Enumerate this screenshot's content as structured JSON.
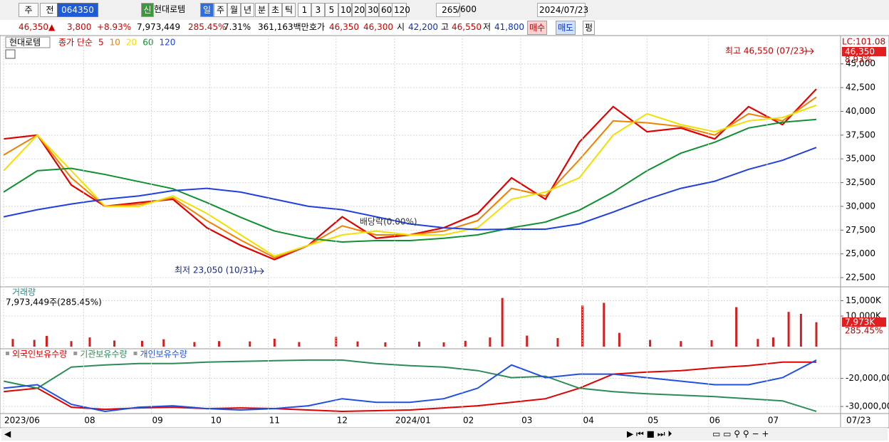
{
  "toolbar": {
    "items": [
      "주",
      "전",
      "064350",
      "신",
      "현대로템",
      "일",
      "주",
      "월",
      "년",
      "분",
      "초",
      "틱",
      "1",
      "3",
      "5",
      "10",
      "20",
      "30",
      "60",
      "120",
      "265",
      "/600",
      "2024/07/23"
    ]
  },
  "quote": {
    "items": [
      "46,350",
      "▲",
      "3,800",
      "+8.93%",
      "7,973,449",
      "285.45%",
      "7.31%",
      "361,163백만",
      "호가",
      "46,350",
      "46,300",
      "시",
      "42,200",
      "고",
      "46,550",
      "저",
      "41,800",
      "매수",
      "매도",
      "펑"
    ]
  },
  "chart_data": [
    {
      "type": "line",
      "title": "현대로템",
      "legend_title": "종가 단순",
      "x": [
        0,
        11,
        22,
        33,
        44,
        55,
        66,
        77,
        88,
        99,
        110,
        121,
        132,
        143,
        154,
        165,
        176,
        187,
        198,
        209,
        220,
        231,
        242,
        253,
        264
      ],
      "xlim": [
        0,
        264
      ],
      "ylim": [
        21530,
        47600
      ],
      "yticks": [
        {
          "value": 22500,
          "label": "22,500"
        },
        {
          "value": 25000,
          "label": "25,000"
        },
        {
          "value": 27500,
          "label": "27,500"
        },
        {
          "value": 30000,
          "label": "30,000"
        },
        {
          "value": 32500,
          "label": "32,500"
        },
        {
          "value": 35000,
          "label": "35,000"
        },
        {
          "value": 37500,
          "label": "37,500"
        },
        {
          "value": 40000,
          "label": "40,000"
        },
        {
          "value": 42500,
          "label": "42,500"
        },
        {
          "value": 45000,
          "label": "45,000"
        }
      ],
      "grid": true,
      "series": [
        {
          "name": "5",
          "color": "#e00000",
          "values": [
            37100,
            37500,
            32250,
            30000,
            30400,
            30750,
            27750,
            25900,
            24400,
            25900,
            28900,
            26650,
            27000,
            27750,
            29250,
            33000,
            30750,
            36750,
            40500,
            37850,
            38250,
            37100,
            40500,
            38600,
            42350
          ]
        },
        {
          "name": "10",
          "color": "#f08000",
          "values": [
            35400,
            37500,
            33000,
            30000,
            30200,
            30900,
            28500,
            26450,
            24600,
            25900,
            27950,
            27000,
            27000,
            27400,
            28500,
            31900,
            31100,
            34900,
            39000,
            38800,
            38400,
            37500,
            39750,
            39000,
            41500
          ]
        },
        {
          "name": "20",
          "color": "#f0e000",
          "values": [
            33750,
            37500,
            33750,
            30000,
            30000,
            31100,
            29250,
            27000,
            24750,
            25900,
            27000,
            27400,
            27000,
            27000,
            27750,
            30750,
            31500,
            33000,
            37500,
            39750,
            38600,
            37850,
            39000,
            39350,
            40650
          ]
        },
        {
          "name": "60",
          "color": "#109030",
          "values": [
            31500,
            33750,
            34000,
            33350,
            32600,
            31850,
            30400,
            28850,
            27400,
            26650,
            26250,
            26400,
            26400,
            26650,
            27000,
            27750,
            28350,
            29600,
            31500,
            33750,
            35600,
            36750,
            38250,
            38850,
            39150
          ]
        },
        {
          "name": "120",
          "color": "#2040e0",
          "values": [
            28900,
            29650,
            30250,
            30750,
            31100,
            31650,
            31900,
            31500,
            30750,
            30000,
            29650,
            28900,
            28150,
            27750,
            27550,
            27600,
            27600,
            28150,
            29400,
            30750,
            31900,
            32650,
            33900,
            34850,
            36200
          ]
        }
      ],
      "annotations": [
        "최고 46,550 (07/23)",
        "최저 23,050 (10/31)",
        "배당락(0.00%)"
      ],
      "lc_label": "LC:101.08",
      "last_label": "46,350",
      "change_label": "8.93%"
    },
    {
      "type": "bar",
      "title": "거래량",
      "subtitle": "7,973,449주(285.45%)",
      "color": "#d02020",
      "x": [
        3,
        10,
        14,
        22,
        28,
        36,
        45,
        52,
        62,
        70,
        80,
        88,
        96,
        108,
        115,
        124,
        135,
        143,
        150,
        158,
        162,
        170,
        180,
        188,
        195,
        200,
        210,
        220,
        230,
        238,
        245,
        250,
        255,
        259,
        264
      ],
      "values": [
        2500,
        2200,
        3500,
        1800,
        3000,
        2000,
        1900,
        2400,
        1500,
        1800,
        1700,
        2600,
        1500,
        3200,
        1700,
        1400,
        1600,
        1400,
        1900,
        3000,
        15900,
        3600,
        2800,
        13400,
        14300,
        4500,
        2200,
        1800,
        2100,
        12900,
        2500,
        3000,
        11350,
        10700,
        7973
      ],
      "xlim": [
        0,
        264
      ],
      "ylim": [
        0,
        18600
      ],
      "yticks": [
        {
          "value": 10000,
          "label": "10,000K"
        },
        {
          "value": 15000,
          "label": "15,000K"
        }
      ],
      "last_label": "7,973K",
      "ratio_label": "285.45%"
    },
    {
      "type": "line",
      "x": [
        0,
        11,
        22,
        33,
        44,
        55,
        66,
        77,
        88,
        99,
        110,
        121,
        132,
        143,
        154,
        165,
        176,
        187,
        198,
        209,
        220,
        231,
        242,
        253,
        264
      ],
      "xlim": [
        0,
        264
      ],
      "ylim": [
        -32250000,
        -10250000
      ],
      "yticks": [
        {
          "value": -30000000,
          "label": "-30,000,00"
        },
        {
          "value": -20000000,
          "label": "-20,000,00"
        }
      ],
      "xticks": [
        {
          "value": 0,
          "label": "2023/06"
        },
        {
          "value": 26,
          "label": "08"
        },
        {
          "value": 48,
          "label": "09"
        },
        {
          "value": 67,
          "label": "10"
        },
        {
          "value": 86,
          "label": "11"
        },
        {
          "value": 108,
          "label": "12"
        },
        {
          "value": 127,
          "label": "2024/01"
        },
        {
          "value": 149,
          "label": "02"
        },
        {
          "value": 168,
          "label": "03"
        },
        {
          "value": 188,
          "label": "04"
        },
        {
          "value": 209,
          "label": "05"
        },
        {
          "value": 229,
          "label": "06"
        },
        {
          "value": 248,
          "label": "07"
        }
      ],
      "x_end_label": "07/23",
      "series": [
        {
          "name": "외국인보유수량",
          "color": "#e00000",
          "values": [
            -24750000,
            -23500000,
            -30250000,
            -31000000,
            -30500000,
            -30250000,
            -30750000,
            -30500000,
            -30750000,
            -31250000,
            -31750000,
            -31500000,
            -31250000,
            -30500000,
            -29750000,
            -28500000,
            -27250000,
            -23500000,
            -18500000,
            -17750000,
            -17250000,
            -16250000,
            -15500000,
            -14250000,
            -14250000
          ]
        },
        {
          "name": "기관보유수량",
          "color": "#2e8b57",
          "values": [
            -21000000,
            -23500000,
            -16000000,
            -15250000,
            -14750000,
            -14750000,
            -14250000,
            -14000000,
            -13750000,
            -13500000,
            -13500000,
            -14750000,
            -15500000,
            -16000000,
            -17250000,
            -19750000,
            -19250000,
            -23500000,
            -24750000,
            -25500000,
            -26000000,
            -26500000,
            -27250000,
            -28000000,
            -31750000
          ]
        },
        {
          "name": "개인보유수량",
          "color": "#2050e0",
          "values": [
            -23500000,
            -22250000,
            -29250000,
            -31750000,
            -30250000,
            -29750000,
            -30750000,
            -31250000,
            -30750000,
            -29750000,
            -27250000,
            -28500000,
            -28500000,
            -27250000,
            -23500000,
            -15250000,
            -19750000,
            -18500000,
            -18500000,
            -19750000,
            -21000000,
            -22250000,
            -22250000,
            -19750000,
            -13500000
          ]
        }
      ]
    }
  ]
}
